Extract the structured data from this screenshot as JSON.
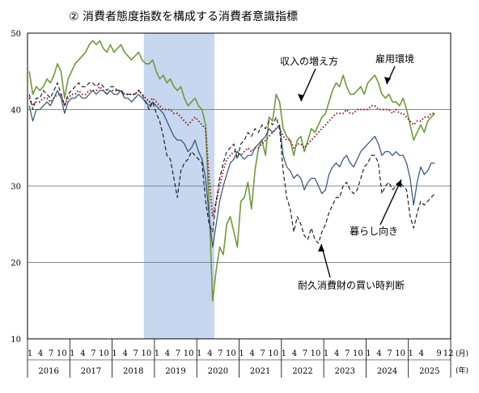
{
  "title": "② 消費者態度指数を構成する消費者意識指標",
  "chart_data": {
    "type": "line",
    "ylim": [
      10,
      50
    ],
    "yticks": [
      10,
      20,
      30,
      40,
      50
    ],
    "grid_y": [
      20,
      30,
      40
    ],
    "x_start": "2016-01",
    "x_end": "2025-12",
    "month_ticks": [
      "1",
      "4",
      "7",
      "10"
    ],
    "month_ticks_last_year": [
      "1",
      "4",
      "9",
      "12"
    ],
    "month_unit": "(月)",
    "year_unit": "(年)",
    "years": [
      "2016",
      "2017",
      "2018",
      "2019",
      "2020",
      "2021",
      "2022",
      "2023",
      "2024",
      "2025"
    ],
    "shaded_period": [
      "2018-10",
      "2020-05"
    ],
    "annotations": {
      "income": "収入の増え方",
      "employment": "雇用環境",
      "livelihood": "暮らし向き",
      "durables": "耐久消費財の買い時判断"
    },
    "series": [
      {
        "key": "employment",
        "values": [
          45.0,
          42.0,
          43.0,
          42.5,
          43.0,
          44.0,
          43.5,
          44.5,
          46.0,
          45.0,
          41.5,
          44.0,
          45.0,
          46.0,
          46.5,
          47.0,
          47.5,
          48.5,
          49.0,
          48.5,
          49.0,
          48.0,
          47.5,
          48.5,
          47.5,
          48.0,
          48.5,
          47.5,
          47.0,
          46.5,
          47.0,
          47.5,
          46.5,
          46.0,
          46.0,
          46.5,
          45.0,
          44.0,
          44.5,
          43.5,
          44.0,
          43.0,
          42.5,
          43.0,
          41.5,
          40.5,
          41.0,
          41.5,
          40.5,
          40.0,
          38.0,
          27.0,
          15.0,
          19.0,
          22.0,
          21.0,
          25.0,
          26.0,
          24.0,
          22.0,
          28.0,
          28.5,
          30.5,
          27.0,
          32.0,
          35.0,
          36.0,
          34.0,
          39.0,
          38.5,
          42.0,
          41.0,
          37.5,
          36.5,
          36.0,
          34.0,
          36.0,
          36.5,
          34.5,
          36.0,
          37.5,
          37.0,
          38.0,
          39.0,
          39.5,
          41.0,
          42.5,
          43.5,
          43.0,
          44.5,
          43.0,
          42.0,
          42.0,
          42.5,
          43.0,
          42.0,
          43.5,
          44.0,
          44.5,
          43.5,
          42.0,
          41.5,
          42.0,
          41.0,
          41.0,
          40.5,
          41.5,
          40.0,
          38.0,
          36.0,
          37.0,
          38.0,
          37.0,
          38.5,
          39.0,
          39.5
        ]
      },
      {
        "key": "income",
        "values": [
          41.5,
          40.5,
          41.0,
          41.0,
          41.5,
          41.5,
          41.0,
          41.5,
          42.0,
          42.0,
          40.5,
          41.5,
          42.0,
          42.0,
          42.5,
          42.0,
          42.0,
          42.5,
          42.5,
          42.5,
          43.0,
          42.5,
          42.0,
          42.5,
          42.5,
          42.5,
          42.5,
          42.0,
          42.0,
          42.0,
          42.0,
          42.5,
          42.0,
          41.5,
          41.0,
          41.5,
          41.0,
          40.5,
          40.0,
          40.0,
          40.0,
          39.5,
          39.5,
          39.0,
          38.5,
          38.0,
          38.5,
          39.0,
          38.5,
          38.0,
          37.5,
          31.0,
          26.0,
          28.0,
          30.0,
          32.0,
          33.5,
          34.0,
          34.5,
          34.5,
          34.0,
          34.5,
          35.0,
          34.5,
          35.0,
          35.0,
          35.5,
          36.0,
          36.5,
          37.0,
          37.5,
          37.5,
          36.5,
          36.0,
          36.0,
          35.0,
          35.5,
          35.5,
          35.0,
          35.5,
          36.0,
          36.5,
          37.0,
          37.5,
          38.0,
          38.5,
          39.0,
          39.5,
          39.5,
          39.5,
          40.0,
          39.5,
          39.5,
          40.0,
          40.0,
          40.0,
          40.0,
          40.5,
          40.5,
          40.0,
          40.0,
          40.0,
          40.0,
          39.5,
          40.0,
          39.5,
          39.5,
          39.0,
          38.5,
          38.0,
          38.5,
          38.5,
          39.0,
          39.0,
          39.5,
          39.5
        ]
      },
      {
        "key": "livelihood",
        "values": [
          40.5,
          38.5,
          40.0,
          40.0,
          40.5,
          41.0,
          40.5,
          41.5,
          42.5,
          41.5,
          39.5,
          41.0,
          41.5,
          41.5,
          42.0,
          41.5,
          41.5,
          42.0,
          42.5,
          42.0,
          42.5,
          42.5,
          42.0,
          42.5,
          42.0,
          42.0,
          42.5,
          41.5,
          41.5,
          41.0,
          41.5,
          42.0,
          41.5,
          41.0,
          40.5,
          41.0,
          40.5,
          40.0,
          39.5,
          38.5,
          37.5,
          36.5,
          36.0,
          36.0,
          35.5,
          34.5,
          35.0,
          36.0,
          34.5,
          33.5,
          31.0,
          26.0,
          22.0,
          25.0,
          28.0,
          30.0,
          31.5,
          33.0,
          33.5,
          34.5,
          34.0,
          33.5,
          34.0,
          34.0,
          35.0,
          35.5,
          36.0,
          36.5,
          37.5,
          37.0,
          37.5,
          38.0,
          34.0,
          32.5,
          32.0,
          31.0,
          31.5,
          31.0,
          29.5,
          30.5,
          31.0,
          31.0,
          30.0,
          29.0,
          29.5,
          31.5,
          32.5,
          33.0,
          32.5,
          33.5,
          34.0,
          33.0,
          32.5,
          33.5,
          34.5,
          35.0,
          35.5,
          36.0,
          36.5,
          35.5,
          34.0,
          34.5,
          34.5,
          34.0,
          34.5,
          34.0,
          34.0,
          33.0,
          31.0,
          27.5,
          30.5,
          32.5,
          31.5,
          32.0,
          33.0,
          33.0
        ]
      },
      {
        "key": "durables",
        "values": [
          42.0,
          40.0,
          41.5,
          41.5,
          42.5,
          42.0,
          41.5,
          42.5,
          43.5,
          42.0,
          40.5,
          42.0,
          42.5,
          43.0,
          43.5,
          43.0,
          43.0,
          43.5,
          43.5,
          43.0,
          43.5,
          43.0,
          42.5,
          43.0,
          43.0,
          42.5,
          42.5,
          42.0,
          42.0,
          42.0,
          42.0,
          42.5,
          42.0,
          41.0,
          40.0,
          41.0,
          39.5,
          38.5,
          36.5,
          34.0,
          33.5,
          31.0,
          28.5,
          32.0,
          33.0,
          33.5,
          34.5,
          34.0,
          33.5,
          33.0,
          28.0,
          25.0,
          24.0,
          28.0,
          31.0,
          33.0,
          34.5,
          35.0,
          35.5,
          33.5,
          35.5,
          36.0,
          37.0,
          36.5,
          37.5,
          37.0,
          38.0,
          37.5,
          38.5,
          38.0,
          39.0,
          37.5,
          32.0,
          28.5,
          27.0,
          24.0,
          26.0,
          25.0,
          23.5,
          23.0,
          24.5,
          23.0,
          22.5,
          24.0,
          25.0,
          26.5,
          27.5,
          28.5,
          28.5,
          30.0,
          30.5,
          29.5,
          29.0,
          29.5,
          31.0,
          32.5,
          33.0,
          34.0,
          34.0,
          33.0,
          29.0,
          30.0,
          30.5,
          29.5,
          30.0,
          30.5,
          30.0,
          29.5,
          26.0,
          24.5,
          26.5,
          28.0,
          27.5,
          28.0,
          28.5,
          29.0
        ]
      }
    ]
  }
}
